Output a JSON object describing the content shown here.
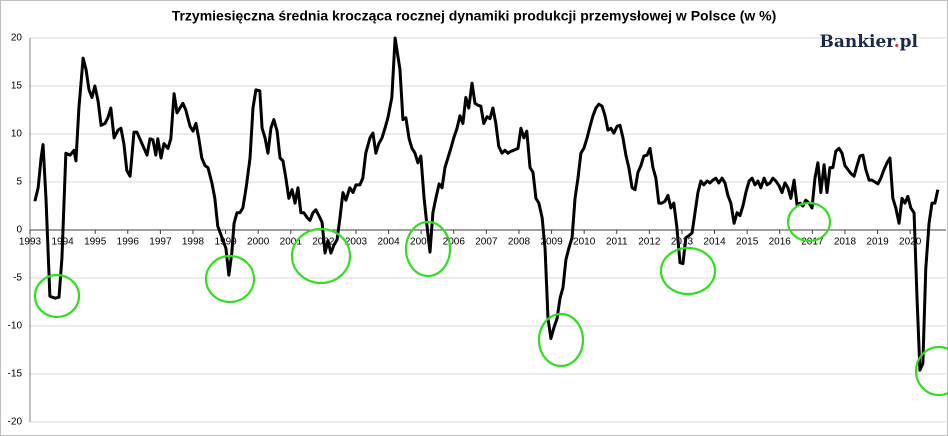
{
  "chart_data": {
    "type": "line",
    "title": "Trzymiesięczna średnia krocząca rocznej dynamiki produkcji przemysłowej w Polsce (w %)",
    "logo": [
      "Bankier",
      ".",
      "pl"
    ],
    "color": "#000000",
    "grid": true,
    "xlim": [
      1993,
      2021.1
    ],
    "xticks": [
      1993,
      1994,
      1995,
      1996,
      1997,
      1998,
      1999,
      2000,
      2001,
      2002,
      2003,
      2004,
      2005,
      2006,
      2007,
      2008,
      2009,
      2010,
      2011,
      2012,
      2013,
      2014,
      2015,
      2016,
      2017,
      2018,
      2019,
      2020
    ],
    "ylim": [
      -20,
      20
    ],
    "yticks": [
      -20,
      -15,
      -10,
      -5,
      0,
      5,
      10,
      15,
      20
    ],
    "x": [
      1993.15,
      1993.25,
      1993.34,
      1993.4,
      1993.49,
      1993.61,
      1993.77,
      1993.89,
      1993.98,
      1994.1,
      1994.23,
      1994.35,
      1994.41,
      1994.5,
      1994.63,
      1994.72,
      1994.81,
      1994.9,
      1994.99,
      1995.09,
      1995.18,
      1995.3,
      1995.39,
      1995.48,
      1995.58,
      1995.7,
      1995.79,
      1995.88,
      1995.97,
      1996.07,
      1996.19,
      1996.28,
      1996.37,
      1996.5,
      1996.59,
      1996.68,
      1996.77,
      1996.86,
      1996.92,
      1997.02,
      1997.11,
      1997.23,
      1997.32,
      1997.42,
      1997.51,
      1997.6,
      1997.69,
      1997.78,
      1997.91,
      1998.0,
      1998.09,
      1998.18,
      1998.27,
      1998.37,
      1998.46,
      1998.58,
      1998.67,
      1998.76,
      1998.89,
      1999.01,
      1999.1,
      1999.19,
      1999.26,
      1999.35,
      1999.44,
      1999.53,
      1999.63,
      1999.75,
      1999.84,
      1999.93,
      2000.05,
      2000.12,
      2000.21,
      2000.3,
      2000.39,
      2000.48,
      2000.58,
      2000.67,
      2000.76,
      2000.85,
      2000.94,
      2001.04,
      2001.13,
      2001.22,
      2001.31,
      2001.4,
      2001.5,
      2001.59,
      2001.68,
      2001.77,
      2001.86,
      2001.96,
      2002.05,
      2002.14,
      2002.23,
      2002.32,
      2002.42,
      2002.51,
      2002.6,
      2002.69,
      2002.81,
      2002.91,
      2003.0,
      2003.12,
      2003.21,
      2003.3,
      2003.43,
      2003.52,
      2003.61,
      2003.7,
      2003.8,
      2003.89,
      2003.98,
      2004.1,
      2004.2,
      2004.35,
      2004.44,
      2004.53,
      2004.63,
      2004.72,
      2004.81,
      2004.9,
      2004.99,
      2005.09,
      2005.18,
      2005.27,
      2005.36,
      2005.45,
      2005.55,
      2005.64,
      2005.73,
      2005.82,
      2005.91,
      2006.0,
      2006.1,
      2006.19,
      2006.28,
      2006.37,
      2006.46,
      2006.56,
      2006.65,
      2006.74,
      2006.83,
      2006.92,
      2007.02,
      2007.11,
      2007.2,
      2007.29,
      2007.38,
      2007.48,
      2007.57,
      2007.66,
      2007.75,
      2007.84,
      2007.97,
      2008.06,
      2008.15,
      2008.24,
      2008.34,
      2008.43,
      2008.52,
      2008.61,
      2008.71,
      2008.8,
      2008.89,
      2008.98,
      2009.07,
      2009.17,
      2009.26,
      2009.35,
      2009.44,
      2009.53,
      2009.63,
      2009.72,
      2009.81,
      2009.9,
      2009.99,
      2010.09,
      2010.18,
      2010.27,
      2010.36,
      2010.45,
      2010.55,
      2010.64,
      2010.73,
      2010.82,
      2010.91,
      2011.01,
      2011.1,
      2011.19,
      2011.28,
      2011.37,
      2011.47,
      2011.56,
      2011.65,
      2011.74,
      2011.83,
      2011.93,
      2012.02,
      2012.11,
      2012.2,
      2012.29,
      2012.38,
      2012.48,
      2012.57,
      2012.66,
      2012.75,
      2012.84,
      2012.94,
      2013.03,
      2013.12,
      2013.21,
      2013.31,
      2013.4,
      2013.49,
      2013.58,
      2013.67,
      2013.77,
      2013.86,
      2013.95,
      2014.04,
      2014.13,
      2014.23,
      2014.32,
      2014.41,
      2014.5,
      2014.6,
      2014.69,
      2014.78,
      2014.87,
      2014.96,
      2015.06,
      2015.15,
      2015.24,
      2015.33,
      2015.42,
      2015.52,
      2015.61,
      2015.7,
      2015.79,
      2015.88,
      2015.98,
      2016.07,
      2016.16,
      2016.25,
      2016.34,
      2016.44,
      2016.53,
      2016.62,
      2016.71,
      2016.8,
      2016.9,
      2016.99,
      2017.08,
      2017.17,
      2017.26,
      2017.36,
      2017.45,
      2017.54,
      2017.63,
      2017.72,
      2017.82,
      2017.91,
      2018.0,
      2018.09,
      2018.18,
      2018.28,
      2018.37,
      2018.46,
      2018.55,
      2018.64,
      2018.74,
      2018.83,
      2018.92,
      2019.01,
      2019.1,
      2019.2,
      2019.29,
      2019.38,
      2019.47,
      2019.56,
      2019.66,
      2019.75,
      2019.84,
      2019.93,
      2020.02,
      2020.12,
      2020.21,
      2020.3,
      2020.39,
      2020.48,
      2020.58,
      2020.67,
      2020.76,
      2020.85
    ],
    "values": [
      3.0,
      4.4,
      7.5,
      8.9,
      3.3,
      -6.9,
      -7.1,
      -7.0,
      -2.9,
      8.0,
      7.8,
      8.3,
      7.2,
      12.7,
      17.9,
      16.7,
      14.6,
      13.8,
      15.0,
      13.4,
      10.9,
      11.1,
      11.7,
      12.7,
      9.6,
      10.4,
      10.6,
      9.0,
      6.2,
      5.6,
      10.2,
      10.2,
      9.5,
      8.5,
      7.8,
      9.5,
      9.4,
      7.8,
      9.5,
      7.5,
      9.0,
      8.5,
      9.5,
      14.2,
      12.2,
      12.7,
      13.2,
      12.5,
      10.8,
      10.3,
      11.1,
      9.5,
      7.5,
      6.7,
      6.5,
      4.9,
      3.3,
      0.4,
      -0.8,
      -1.9,
      -4.7,
      -2.4,
      0.7,
      1.8,
      1.8,
      2.3,
      4.4,
      7.5,
      12.7,
      14.6,
      14.5,
      10.6,
      9.6,
      8.0,
      10.6,
      11.5,
      10.3,
      7.5,
      7.2,
      5.4,
      3.3,
      4.2,
      2.8,
      4.4,
      1.8,
      1.8,
      1.3,
      1.0,
      1.8,
      2.1,
      1.5,
      0.8,
      -2.4,
      -1.1,
      -2.4,
      -1.6,
      -1.0,
      1.3,
      3.9,
      3.1,
      4.4,
      3.9,
      4.7,
      4.7,
      5.4,
      8.0,
      9.6,
      10.1,
      8.0,
      9.0,
      9.6,
      10.6,
      11.7,
      13.8,
      20.0,
      16.7,
      11.5,
      11.7,
      9.5,
      8.5,
      8.0,
      7.0,
      7.7,
      3.3,
      0.4,
      -2.3,
      1.8,
      3.3,
      4.8,
      4.4,
      6.5,
      7.5,
      8.5,
      9.6,
      10.6,
      11.9,
      11.1,
      13.8,
      12.7,
      15.3,
      13.2,
      13.0,
      12.9,
      11.1,
      11.8,
      11.6,
      12.7,
      11.1,
      8.7,
      8.0,
      8.3,
      8.0,
      8.2,
      8.3,
      8.5,
      10.6,
      9.6,
      10.3,
      6.5,
      6.0,
      3.3,
      2.8,
      1.3,
      -1.9,
      -9.2,
      -11.3,
      -10.2,
      -9.2,
      -7.1,
      -6.0,
      -3.1,
      -1.9,
      -0.8,
      3.3,
      5.4,
      8.0,
      8.5,
      9.6,
      10.8,
      11.9,
      12.7,
      13.1,
      12.9,
      11.9,
      10.4,
      10.6,
      10.1,
      10.8,
      10.9,
      9.6,
      7.8,
      6.5,
      4.4,
      4.2,
      6.0,
      6.7,
      7.7,
      7.8,
      8.5,
      6.5,
      5.4,
      2.8,
      2.8,
      3.0,
      3.6,
      2.3,
      2.8,
      0.4,
      -3.4,
      -3.5,
      -0.8,
      -0.6,
      -0.3,
      1.8,
      3.9,
      5.1,
      4.7,
      5.1,
      4.9,
      5.2,
      5.4,
      4.9,
      5.4,
      4.9,
      3.6,
      2.8,
      0.7,
      1.8,
      1.5,
      2.5,
      3.9,
      5.1,
      5.4,
      4.7,
      5.1,
      4.4,
      5.4,
      4.7,
      4.9,
      5.4,
      5.1,
      4.6,
      3.9,
      4.9,
      4.4,
      3.3,
      5.2,
      2.6,
      2.8,
      2.5,
      3.1,
      2.8,
      2.3,
      5.4,
      7.0,
      3.9,
      6.8,
      3.9,
      6.5,
      6.5,
      8.2,
      8.5,
      8.0,
      6.7,
      6.3,
      5.9,
      5.6,
      6.7,
      7.7,
      7.8,
      6.3,
      5.2,
      5.2,
      5.0,
      4.8,
      5.4,
      6.3,
      7.0,
      7.5,
      3.3,
      2.3,
      0.7,
      3.3,
      2.8,
      3.5,
      2.3,
      1.8,
      -7.0,
      -14.6,
      -13.9,
      -4.0,
      0.7,
      2.8,
      2.8,
      4.2
    ]
  }
}
